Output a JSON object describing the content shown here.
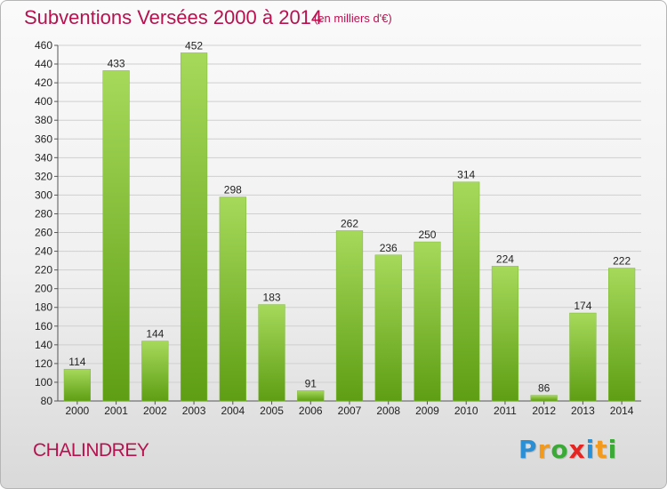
{
  "header": {
    "title": "Subventions Versées 2000 à 2014",
    "subtitle": "(en milliers d'€)"
  },
  "footer": {
    "town": "CHALINDREY",
    "logo": {
      "letters": [
        "P",
        "r",
        "o",
        "x",
        "i",
        "t",
        "i"
      ],
      "colors": [
        "#2b8fd6",
        "#f29a1e",
        "#3aa935",
        "#e52521",
        "#2b8fd6",
        "#f29a1e",
        "#3aa935"
      ]
    }
  },
  "colors": {
    "title": "#b5124e",
    "bar_light": "#a6d95a",
    "bar_dark": "#5e9e14",
    "grid": "#cfcfcf"
  },
  "chart_data": {
    "type": "bar",
    "categories": [
      "2000",
      "2001",
      "2002",
      "2003",
      "2004",
      "2005",
      "2006",
      "2007",
      "2008",
      "2009",
      "2010",
      "2011",
      "2012",
      "2013",
      "2014"
    ],
    "values": [
      114,
      433,
      144,
      452,
      298,
      183,
      91,
      262,
      236,
      250,
      314,
      224,
      86,
      174,
      222
    ],
    "title": "Subventions Versées 2000 à 2014",
    "xlabel": "",
    "ylabel": "",
    "ylim": [
      80,
      460
    ],
    "yticks": [
      80,
      100,
      120,
      140,
      160,
      180,
      200,
      220,
      240,
      260,
      280,
      300,
      320,
      340,
      360,
      380,
      400,
      420,
      440,
      460
    ],
    "grid": true,
    "legend": "none"
  }
}
